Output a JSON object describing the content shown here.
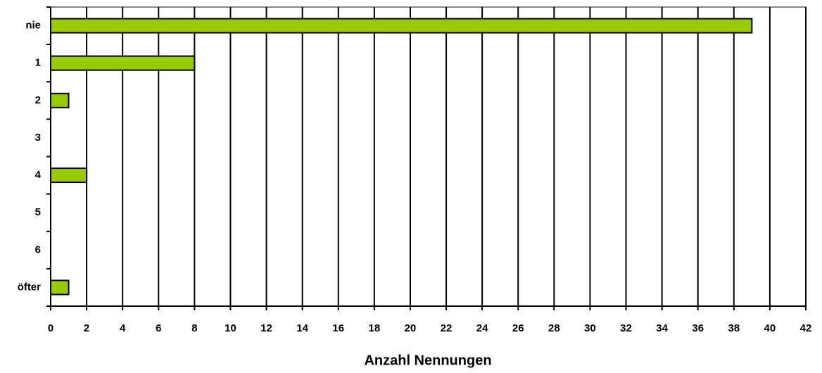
{
  "chart_data": {
    "type": "barh",
    "categories": [
      "nie",
      "1",
      "2",
      "3",
      "4",
      "5",
      "6",
      "öfter"
    ],
    "values": [
      39,
      8,
      1,
      0,
      2,
      0,
      0,
      1
    ],
    "color": "#99cc00",
    "xlabel": "Anzahl Nennungen",
    "xlim": [
      0,
      42
    ],
    "xticks": [
      0,
      2,
      4,
      6,
      8,
      10,
      12,
      14,
      16,
      18,
      20,
      22,
      24,
      26,
      28,
      30,
      32,
      34,
      36,
      38,
      40,
      42
    ],
    "grid": true
  }
}
